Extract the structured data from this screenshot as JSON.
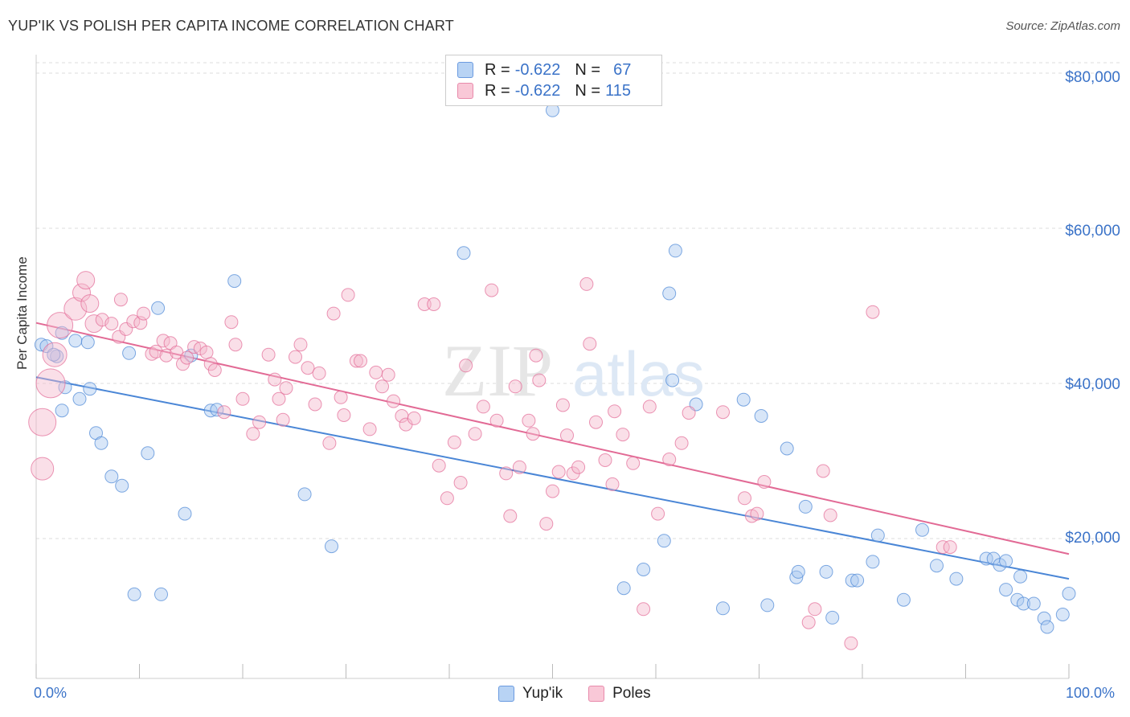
{
  "header": {
    "title": "YUP'IK VS POLISH PER CAPITA INCOME CORRELATION CHART",
    "source": "Source: ZipAtlas.com"
  },
  "legend": {
    "rows": [
      {
        "r_label": "R =",
        "r_value": "-0.622",
        "n_label": "N =",
        "n_value": "67",
        "color": "#a9c8f0"
      },
      {
        "r_label": "R =",
        "r_value": "-0.622",
        "n_label": "N =",
        "n_value": "115",
        "color": "#f5b8cc"
      }
    ]
  },
  "watermark": {
    "zip": "ZIP",
    "atlas": "atlas"
  },
  "chart_data": {
    "type": "scatter",
    "title": "YUP'IK VS POLISH PER CAPITA INCOME CORRELATION CHART",
    "xlabel": "",
    "ylabel": "Per Capita Income",
    "xlim": [
      0,
      100
    ],
    "ylim": [
      3000,
      83000
    ],
    "x_tick_labels": [
      "0.0%",
      "100.0%"
    ],
    "y_ticks": [
      20000,
      40000,
      60000,
      80000
    ],
    "y_tick_labels": [
      "$20,000",
      "$40,000",
      "$60,000",
      "$80,000"
    ],
    "grid": true,
    "legend_position": "top-center",
    "series": [
      {
        "name": "Yup'ik",
        "color": "#4a86d6",
        "fill": "#a9c8f0",
        "trend": {
          "x": [
            0,
            100
          ],
          "y": [
            40800,
            14800
          ]
        },
        "points": [
          [
            0.5,
            45000
          ],
          [
            2,
            43500
          ],
          [
            2.5,
            46500
          ],
          [
            1,
            44800
          ],
          [
            3.8,
            45500
          ],
          [
            5,
            45300
          ],
          [
            2.5,
            36500
          ],
          [
            2.8,
            39500
          ],
          [
            4.2,
            38000
          ],
          [
            5.2,
            39300
          ],
          [
            5.8,
            33600
          ],
          [
            6.3,
            32300
          ],
          [
            7.3,
            28000
          ],
          [
            8.3,
            26800
          ],
          [
            9,
            43900
          ],
          [
            9.5,
            12800
          ],
          [
            10.8,
            31000
          ],
          [
            11.8,
            49700
          ],
          [
            12.1,
            12800
          ],
          [
            14.4,
            23200
          ],
          [
            15,
            43600
          ],
          [
            16.9,
            36500
          ],
          [
            17.5,
            36600
          ],
          [
            19.2,
            53200
          ],
          [
            26,
            25700
          ],
          [
            28.6,
            19000
          ],
          [
            41.4,
            56800
          ],
          [
            50,
            75200
          ],
          [
            56.9,
            13600
          ],
          [
            58.8,
            16000
          ],
          [
            60.8,
            19700
          ],
          [
            61.3,
            51600
          ],
          [
            61.6,
            40400
          ],
          [
            61.9,
            57100
          ],
          [
            63.9,
            37300
          ],
          [
            66.5,
            11000
          ],
          [
            68.5,
            37900
          ],
          [
            70.2,
            35800
          ],
          [
            70.8,
            11400
          ],
          [
            72.7,
            31600
          ],
          [
            73.6,
            15000
          ],
          [
            73.8,
            15700
          ],
          [
            74.5,
            24100
          ],
          [
            76.5,
            15700
          ],
          [
            77.1,
            9800
          ],
          [
            79,
            14600
          ],
          [
            79.5,
            14600
          ],
          [
            81,
            17000
          ],
          [
            81.5,
            20400
          ],
          [
            84,
            12100
          ],
          [
            85.8,
            21100
          ],
          [
            87.2,
            16500
          ],
          [
            89.1,
            14800
          ],
          [
            92,
            17400
          ],
          [
            92.7,
            17400
          ],
          [
            93.3,
            16600
          ],
          [
            93.9,
            17100
          ],
          [
            93.9,
            13400
          ],
          [
            95,
            12100
          ],
          [
            95.3,
            15100
          ],
          [
            95.6,
            11600
          ],
          [
            96.6,
            11600
          ],
          [
            97.6,
            9700
          ],
          [
            97.9,
            8600
          ],
          [
            99.4,
            10200
          ],
          [
            100,
            12900
          ],
          [
            1.7,
            43700
          ]
        ]
      },
      {
        "name": "Poles",
        "color": "#e26a95",
        "fill": "#f5b8cc",
        "trend": {
          "x": [
            0,
            100
          ],
          "y": [
            47800,
            18000
          ]
        },
        "points": [
          [
            0.6,
            35000
          ],
          [
            0.6,
            29000
          ],
          [
            1.4,
            40000
          ],
          [
            1.8,
            43700
          ],
          [
            2.3,
            47500
          ],
          [
            3.8,
            49600
          ],
          [
            4.4,
            51700
          ],
          [
            5.2,
            50300
          ],
          [
            4.8,
            53300
          ],
          [
            5.6,
            47700
          ],
          [
            6.4,
            48200
          ],
          [
            7.3,
            47700
          ],
          [
            8,
            46000
          ],
          [
            8.2,
            50800
          ],
          [
            8.7,
            47000
          ],
          [
            9.4,
            48000
          ],
          [
            10.1,
            47800
          ],
          [
            10.4,
            49000
          ],
          [
            11.2,
            43800
          ],
          [
            11.6,
            44100
          ],
          [
            12.3,
            45500
          ],
          [
            12.6,
            43600
          ],
          [
            13,
            45200
          ],
          [
            13.6,
            44000
          ],
          [
            14.2,
            42500
          ],
          [
            14.6,
            43300
          ],
          [
            15.3,
            44700
          ],
          [
            15.9,
            44500
          ],
          [
            16.5,
            44000
          ],
          [
            16.9,
            42500
          ],
          [
            17.3,
            41700
          ],
          [
            18.2,
            36300
          ],
          [
            18.9,
            47900
          ],
          [
            19.3,
            45000
          ],
          [
            20,
            38000
          ],
          [
            21,
            33500
          ],
          [
            21.6,
            35000
          ],
          [
            22.5,
            43700
          ],
          [
            23.1,
            40500
          ],
          [
            23.5,
            38000
          ],
          [
            23.9,
            35300
          ],
          [
            24.2,
            39400
          ],
          [
            25.1,
            43400
          ],
          [
            25.6,
            45000
          ],
          [
            26.3,
            42000
          ],
          [
            27,
            37300
          ],
          [
            27.4,
            41300
          ],
          [
            28.4,
            32300
          ],
          [
            28.8,
            49000
          ],
          [
            29.5,
            38200
          ],
          [
            29.8,
            35900
          ],
          [
            30.2,
            51400
          ],
          [
            31,
            42900
          ],
          [
            31.4,
            42900
          ],
          [
            32.3,
            34100
          ],
          [
            32.9,
            41400
          ],
          [
            33.5,
            39600
          ],
          [
            34.1,
            41100
          ],
          [
            34.6,
            37700
          ],
          [
            35.4,
            35800
          ],
          [
            35.8,
            34700
          ],
          [
            36.6,
            35500
          ],
          [
            37.6,
            50200
          ],
          [
            38.5,
            50200
          ],
          [
            39,
            29400
          ],
          [
            39.8,
            25200
          ],
          [
            40.5,
            32400
          ],
          [
            41.1,
            27200
          ],
          [
            41.6,
            42300
          ],
          [
            42.5,
            33500
          ],
          [
            43.3,
            37000
          ],
          [
            44.1,
            52000
          ],
          [
            44.6,
            35200
          ],
          [
            45.5,
            28400
          ],
          [
            45.9,
            22900
          ],
          [
            46.4,
            39600
          ],
          [
            46.8,
            29200
          ],
          [
            47.7,
            35200
          ],
          [
            48.1,
            33500
          ],
          [
            48.4,
            43600
          ],
          [
            48.7,
            40400
          ],
          [
            49.4,
            21900
          ],
          [
            50,
            26100
          ],
          [
            50.6,
            28600
          ],
          [
            51,
            37200
          ],
          [
            51.4,
            33300
          ],
          [
            52,
            28400
          ],
          [
            52.5,
            29200
          ],
          [
            53.3,
            52800
          ],
          [
            53.6,
            45100
          ],
          [
            54.2,
            35000
          ],
          [
            55.1,
            30100
          ],
          [
            55.8,
            27000
          ],
          [
            56,
            36400
          ],
          [
            56.8,
            33400
          ],
          [
            57.8,
            29700
          ],
          [
            58.8,
            10900
          ],
          [
            59.4,
            37000
          ],
          [
            60.2,
            23200
          ],
          [
            61.3,
            30200
          ],
          [
            62.5,
            32300
          ],
          [
            63.2,
            36200
          ],
          [
            66.5,
            36300
          ],
          [
            68.6,
            25200
          ],
          [
            69.3,
            22900
          ],
          [
            69.8,
            23200
          ],
          [
            70.5,
            27300
          ],
          [
            74.8,
            9200
          ],
          [
            75.4,
            10900
          ],
          [
            76.2,
            28700
          ],
          [
            76.9,
            23000
          ],
          [
            78.9,
            6500
          ],
          [
            81,
            49200
          ],
          [
            87.8,
            18900
          ],
          [
            88.5,
            18900
          ]
        ]
      }
    ]
  }
}
